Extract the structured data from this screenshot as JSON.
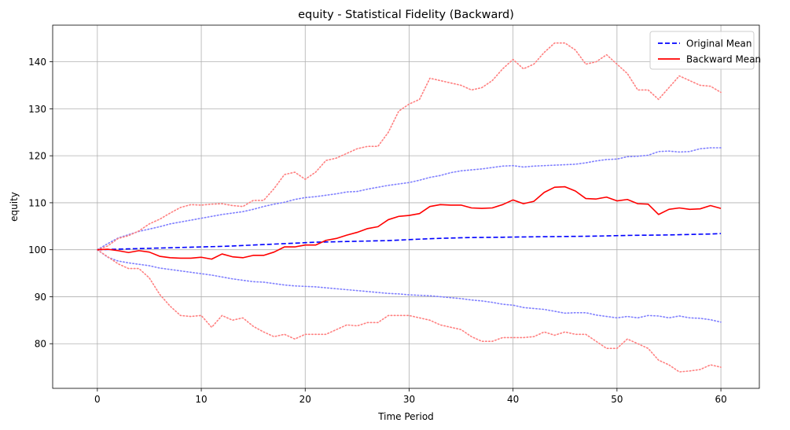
{
  "chart_data": {
    "type": "line",
    "title": "equity - Statistical Fidelity (Backward)",
    "xlabel": "Time Period",
    "ylabel": "equity",
    "xlim": [
      -4.3,
      63.7
    ],
    "ylim": [
      70.5,
      147.8
    ],
    "xticks": [
      0,
      10,
      20,
      30,
      40,
      50,
      60
    ],
    "yticks": [
      80,
      90,
      100,
      110,
      120,
      130,
      140
    ],
    "grid": true,
    "legend_position": "top-right",
    "legend": [
      {
        "label": "Original Mean",
        "color": "#0000ff",
        "style": "dashed"
      },
      {
        "label": "Backward Mean",
        "color": "#ff0000",
        "style": "solid"
      }
    ],
    "x": [
      0,
      1,
      2,
      3,
      4,
      5,
      6,
      7,
      8,
      9,
      10,
      11,
      12,
      13,
      14,
      15,
      16,
      17,
      18,
      19,
      20,
      21,
      22,
      23,
      24,
      25,
      26,
      27,
      28,
      29,
      30,
      31,
      32,
      33,
      34,
      35,
      36,
      37,
      38,
      39,
      40,
      41,
      42,
      43,
      44,
      45,
      46,
      47,
      48,
      49,
      50,
      51,
      52,
      53,
      54,
      55,
      56,
      57,
      58,
      59,
      60
    ],
    "series": [
      {
        "name": "Original Mean",
        "role": "mean",
        "color": "#0000ff",
        "style": "dashed",
        "values": [
          100,
          100.06,
          100.12,
          100.18,
          100.24,
          100.3,
          100.36,
          100.42,
          100.48,
          100.54,
          100.6,
          100.66,
          100.72,
          100.8,
          100.9,
          101.0,
          101.1,
          101.2,
          101.3,
          101.4,
          101.5,
          101.6,
          101.65,
          101.7,
          101.75,
          101.8,
          101.85,
          101.9,
          101.95,
          102.05,
          102.15,
          102.25,
          102.35,
          102.42,
          102.48,
          102.55,
          102.6,
          102.62,
          102.64,
          102.66,
          102.7,
          102.72,
          102.75,
          102.78,
          102.8,
          102.82,
          102.85,
          102.87,
          102.9,
          102.95,
          103.0,
          103.05,
          103.08,
          103.1,
          103.12,
          103.15,
          103.2,
          103.25,
          103.3,
          103.35,
          103.45
        ]
      },
      {
        "role": "band",
        "color": "#8080ff",
        "style": "dotted",
        "values": [
          100,
          101.3,
          102.5,
          103.2,
          103.9,
          104.4,
          104.9,
          105.5,
          105.9,
          106.3,
          106.7,
          107.1,
          107.5,
          107.8,
          108.1,
          108.6,
          109.2,
          109.7,
          110.1,
          110.7,
          111.1,
          111.3,
          111.6,
          111.9,
          112.3,
          112.4,
          112.9,
          113.3,
          113.7,
          114,
          114.3,
          114.8,
          115.4,
          115.8,
          116.4,
          116.8,
          117,
          117.2,
          117.5,
          117.8,
          117.9,
          117.6,
          117.8,
          117.9,
          118,
          118.1,
          118.2,
          118.5,
          118.9,
          119.2,
          119.3,
          119.8,
          119.9,
          120.1,
          120.9,
          121,
          120.8,
          120.9,
          121.5,
          121.7,
          121.7
        ]
      },
      {
        "role": "band",
        "color": "#8080ff",
        "style": "dotted",
        "values": [
          100,
          98.4,
          97.6,
          97.2,
          96.9,
          96.6,
          96.1,
          95.8,
          95.5,
          95.2,
          94.9,
          94.6,
          94.2,
          93.8,
          93.5,
          93.2,
          93.1,
          92.8,
          92.5,
          92.3,
          92.2,
          92.1,
          91.9,
          91.7,
          91.5,
          91.3,
          91.1,
          90.9,
          90.7,
          90.6,
          90.4,
          90.3,
          90.2,
          90,
          89.8,
          89.6,
          89.3,
          89.1,
          88.8,
          88.4,
          88.2,
          87.7,
          87.5,
          87.3,
          86.9,
          86.5,
          86.6,
          86.6,
          86.1,
          85.8,
          85.5,
          85.8,
          85.5,
          86,
          85.9,
          85.5,
          85.9,
          85.5,
          85.4,
          85.1,
          84.6
        ]
      },
      {
        "role": "band",
        "color": "#ff8080",
        "style": "dotted",
        "values": [
          100,
          100.8,
          102.4,
          103,
          104,
          105.5,
          106.5,
          107.8,
          109,
          109.6,
          109.5,
          109.7,
          109.8,
          109.4,
          109.2,
          110.5,
          110.5,
          113,
          116,
          116.5,
          115,
          116.5,
          119,
          119.5,
          120.5,
          121.5,
          122,
          122,
          125,
          129.5,
          131,
          132,
          136.5,
          136,
          135.5,
          135,
          134,
          134.5,
          136,
          138.5,
          140.5,
          138.5,
          139.5,
          142,
          144,
          144,
          142.5,
          139.5,
          140,
          141.5,
          139.5,
          137.5,
          134,
          134,
          132,
          134.5,
          137,
          136,
          135,
          134.8,
          133.5
        ]
      },
      {
        "role": "band",
        "color": "#ff8080",
        "style": "dotted",
        "values": [
          100,
          98.5,
          97,
          96,
          96,
          94,
          90.5,
          88,
          86,
          85.8,
          86,
          83.5,
          86,
          85,
          85.5,
          83.7,
          82.5,
          81.5,
          82,
          81,
          82,
          82,
          82,
          83,
          84,
          83.8,
          84.5,
          84.5,
          86,
          86,
          86,
          85.5,
          85,
          84,
          83.5,
          83,
          81.5,
          80.5,
          80.5,
          81.3,
          81.3,
          81.3,
          81.5,
          82.5,
          81.8,
          82.5,
          82,
          82,
          80.5,
          79,
          79,
          81,
          80,
          79,
          76.5,
          75.5,
          74,
          74.2,
          74.5,
          75.5,
          75
        ]
      },
      {
        "name": "Backward Mean",
        "role": "mean",
        "color": "#ff0000",
        "style": "solid",
        "values": [
          100,
          100.1,
          99.8,
          99.4,
          99.8,
          99.5,
          98.6,
          98.3,
          98.2,
          98.2,
          98.4,
          98.0,
          99.1,
          98.5,
          98.3,
          98.8,
          98.8,
          99.5,
          100.6,
          100.6,
          101.0,
          101.0,
          102.0,
          102.4,
          103.1,
          103.7,
          104.5,
          104.9,
          106.4,
          107.1,
          107.3,
          107.7,
          109.2,
          109.6,
          109.5,
          109.5,
          108.9,
          108.8,
          108.9,
          109.6,
          110.6,
          109.8,
          110.3,
          112.2,
          113.3,
          113.4,
          112.5,
          110.9,
          110.8,
          111.2,
          110.4,
          110.7,
          109.8,
          109.7,
          107.5,
          108.6,
          108.9,
          108.6,
          108.7,
          109.4,
          108.8
        ]
      }
    ]
  }
}
